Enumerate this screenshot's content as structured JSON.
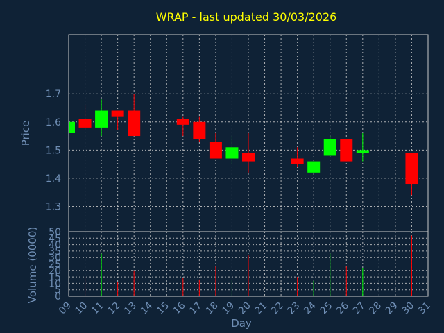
{
  "chart_data": {
    "type": "candlestick",
    "title": "WRAP - last updated 30/03/2026",
    "xlabel": "Day",
    "price_panel": {
      "ylabel": "Price",
      "yticks": [
        "1.3",
        "1.4",
        "1.5",
        "1.6",
        "1.7"
      ],
      "ylim": [
        1.21,
        1.91
      ]
    },
    "volume_panel": {
      "ylabel": "Volume (0000)",
      "yticks": [
        "0",
        "5",
        "10",
        "15",
        "20",
        "25",
        "30",
        "35",
        "40",
        "45",
        "50"
      ],
      "ylim": [
        0,
        50
      ]
    },
    "x_ticks": [
      "09",
      "10",
      "11",
      "12",
      "13",
      "14",
      "15",
      "16",
      "17",
      "18",
      "19",
      "20",
      "21",
      "22",
      "23",
      "24",
      "25",
      "26",
      "27",
      "28",
      "29",
      "30",
      "31"
    ],
    "grid": true,
    "up_color": "#00ff00",
    "down_color": "#ff0000",
    "candles": [
      {
        "day": "09",
        "open": 1.56,
        "high": 1.6,
        "low": 1.56,
        "close": 1.6,
        "volume": 0
      },
      {
        "day": "10",
        "open": 1.61,
        "high": 1.66,
        "low": 1.58,
        "close": 1.58,
        "volume": 15
      },
      {
        "day": "11",
        "open": 1.58,
        "high": 1.68,
        "low": 1.55,
        "close": 1.64,
        "volume": 33
      },
      {
        "day": "12",
        "open": 1.64,
        "high": 1.64,
        "low": 1.57,
        "close": 1.62,
        "volume": 11
      },
      {
        "day": "13",
        "open": 1.64,
        "high": 1.7,
        "low": 1.55,
        "close": 1.55,
        "volume": 20
      },
      {
        "day": "16",
        "open": 1.61,
        "high": 1.62,
        "low": 1.55,
        "close": 1.59,
        "volume": 14
      },
      {
        "day": "17",
        "open": 1.6,
        "high": 1.62,
        "low": 1.53,
        "close": 1.54,
        "volume": 13
      },
      {
        "day": "18",
        "open": 1.53,
        "high": 1.56,
        "low": 1.47,
        "close": 1.47,
        "volume": 23
      },
      {
        "day": "19",
        "open": 1.47,
        "high": 1.55,
        "low": 1.45,
        "close": 1.51,
        "volume": 13
      },
      {
        "day": "20",
        "open": 1.49,
        "high": 1.56,
        "low": 1.42,
        "close": 1.46,
        "volume": 32
      },
      {
        "day": "23",
        "open": 1.47,
        "high": 1.51,
        "low": 1.44,
        "close": 1.45,
        "volume": 15
      },
      {
        "day": "24",
        "open": 1.42,
        "high": 1.46,
        "low": 1.42,
        "close": 1.46,
        "volume": 12
      },
      {
        "day": "25",
        "open": 1.48,
        "high": 1.55,
        "low": 1.48,
        "close": 1.54,
        "volume": 33
      },
      {
        "day": "26",
        "open": 1.54,
        "high": 1.54,
        "low": 1.46,
        "close": 1.46,
        "volume": 23
      },
      {
        "day": "27",
        "open": 1.49,
        "high": 1.56,
        "low": 1.46,
        "close": 1.5,
        "volume": 22
      },
      {
        "day": "30",
        "open": 1.49,
        "high": 1.49,
        "low": 1.34,
        "close": 1.38,
        "volume": 47
      }
    ]
  }
}
